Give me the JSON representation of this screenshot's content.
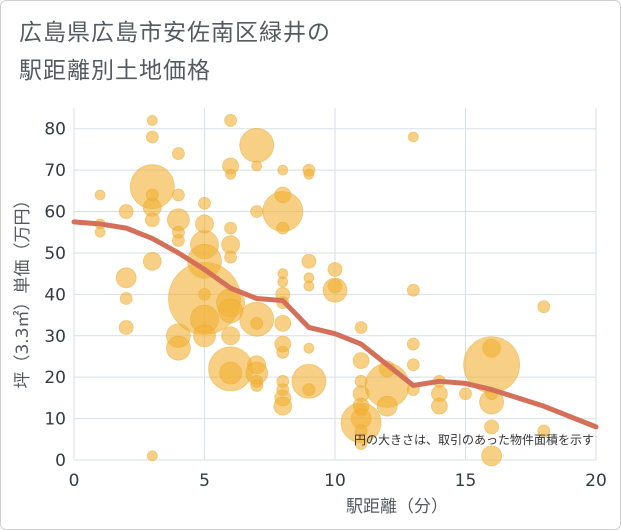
{
  "title_line1": "広島県広島市安佐南区緑井の",
  "title_line2": "駅距離別土地価格",
  "chart_data": {
    "type": "scatter",
    "title": "広島県広島市安佐南区緑井の 駅距離別土地価格",
    "xlabel": "駅距離（分）",
    "ylabel": "坪（3.3㎡）単価（万円）",
    "xlim": [
      0,
      20
    ],
    "ylim": [
      0,
      85
    ],
    "xticks": [
      0,
      5,
      10,
      15,
      20
    ],
    "yticks": [
      0,
      10,
      20,
      30,
      40,
      50,
      60,
      70,
      80
    ],
    "grid": true,
    "note": "円の大きさは、取引のあった物件面積を示す",
    "colors": {
      "bubble": "#f2b134",
      "trend": "#d4705a",
      "grid": "#d7dfe8"
    },
    "points": [
      {
        "x": 1,
        "y": 64,
        "s": 5
      },
      {
        "x": 1,
        "y": 57,
        "s": 5
      },
      {
        "x": 1,
        "y": 55,
        "s": 5
      },
      {
        "x": 2,
        "y": 60,
        "s": 7
      },
      {
        "x": 2,
        "y": 44,
        "s": 10
      },
      {
        "x": 2,
        "y": 39,
        "s": 6
      },
      {
        "x": 2,
        "y": 32,
        "s": 7
      },
      {
        "x": 3,
        "y": 82,
        "s": 5
      },
      {
        "x": 3,
        "y": 78,
        "s": 6
      },
      {
        "x": 3,
        "y": 66,
        "s": 22
      },
      {
        "x": 3,
        "y": 64,
        "s": 6
      },
      {
        "x": 3,
        "y": 61,
        "s": 9
      },
      {
        "x": 3,
        "y": 58,
        "s": 7
      },
      {
        "x": 3,
        "y": 48,
        "s": 9
      },
      {
        "x": 3,
        "y": 1,
        "s": 5
      },
      {
        "x": 4,
        "y": 74,
        "s": 6
      },
      {
        "x": 4,
        "y": 64,
        "s": 6
      },
      {
        "x": 4,
        "y": 58,
        "s": 11
      },
      {
        "x": 4,
        "y": 55,
        "s": 6
      },
      {
        "x": 4,
        "y": 53,
        "s": 6
      },
      {
        "x": 4,
        "y": 30,
        "s": 12
      },
      {
        "x": 4,
        "y": 27,
        "s": 12
      },
      {
        "x": 5,
        "y": 62,
        "s": 6
      },
      {
        "x": 5,
        "y": 57,
        "s": 9
      },
      {
        "x": 5,
        "y": 52,
        "s": 14
      },
      {
        "x": 5,
        "y": 48,
        "s": 17
      },
      {
        "x": 5,
        "y": 40,
        "s": 6
      },
      {
        "x": 5,
        "y": 39,
        "s": 36
      },
      {
        "x": 5,
        "y": 34,
        "s": 14
      },
      {
        "x": 5,
        "y": 30,
        "s": 11
      },
      {
        "x": 6,
        "y": 82,
        "s": 6
      },
      {
        "x": 6,
        "y": 71,
        "s": 8
      },
      {
        "x": 6,
        "y": 69,
        "s": 5
      },
      {
        "x": 6,
        "y": 56,
        "s": 6
      },
      {
        "x": 6,
        "y": 52,
        "s": 9
      },
      {
        "x": 6,
        "y": 49,
        "s": 6
      },
      {
        "x": 6,
        "y": 38,
        "s": 14
      },
      {
        "x": 6,
        "y": 36,
        "s": 12
      },
      {
        "x": 6,
        "y": 30,
        "s": 9
      },
      {
        "x": 6,
        "y": 22,
        "s": 22
      },
      {
        "x": 6,
        "y": 21,
        "s": 11
      },
      {
        "x": 7,
        "y": 76,
        "s": 17
      },
      {
        "x": 7,
        "y": 71,
        "s": 5
      },
      {
        "x": 7,
        "y": 60,
        "s": 6
      },
      {
        "x": 7,
        "y": 34,
        "s": 17
      },
      {
        "x": 7,
        "y": 33,
        "s": 6
      },
      {
        "x": 7,
        "y": 23,
        "s": 9
      },
      {
        "x": 7,
        "y": 21,
        "s": 11
      },
      {
        "x": 7,
        "y": 19,
        "s": 6
      },
      {
        "x": 7,
        "y": 18,
        "s": 6
      },
      {
        "x": 8,
        "y": 70,
        "s": 5
      },
      {
        "x": 8,
        "y": 64,
        "s": 8
      },
      {
        "x": 8,
        "y": 60,
        "s": 20
      },
      {
        "x": 8,
        "y": 56,
        "s": 6
      },
      {
        "x": 8,
        "y": 45,
        "s": 5
      },
      {
        "x": 8,
        "y": 43,
        "s": 5
      },
      {
        "x": 8,
        "y": 40,
        "s": 7
      },
      {
        "x": 8,
        "y": 38,
        "s": 6
      },
      {
        "x": 8,
        "y": 33,
        "s": 8
      },
      {
        "x": 8,
        "y": 28,
        "s": 8
      },
      {
        "x": 8,
        "y": 26,
        "s": 6
      },
      {
        "x": 8,
        "y": 19,
        "s": 6
      },
      {
        "x": 8,
        "y": 17,
        "s": 6
      },
      {
        "x": 8,
        "y": 15,
        "s": 8
      },
      {
        "x": 8,
        "y": 13,
        "s": 9
      },
      {
        "x": 9,
        "y": 70,
        "s": 6
      },
      {
        "x": 9,
        "y": 69,
        "s": 5
      },
      {
        "x": 9,
        "y": 48,
        "s": 7
      },
      {
        "x": 9,
        "y": 44,
        "s": 5
      },
      {
        "x": 9,
        "y": 42,
        "s": 5
      },
      {
        "x": 9,
        "y": 27,
        "s": 5
      },
      {
        "x": 9,
        "y": 19,
        "s": 17
      },
      {
        "x": 9,
        "y": 17,
        "s": 6
      },
      {
        "x": 10,
        "y": 46,
        "s": 7
      },
      {
        "x": 10,
        "y": 42,
        "s": 7
      },
      {
        "x": 10,
        "y": 41,
        "s": 12
      },
      {
        "x": 11,
        "y": 32,
        "s": 6
      },
      {
        "x": 11,
        "y": 24,
        "s": 8
      },
      {
        "x": 11,
        "y": 19,
        "s": 6
      },
      {
        "x": 11,
        "y": 16,
        "s": 8
      },
      {
        "x": 11,
        "y": 13,
        "s": 8
      },
      {
        "x": 11,
        "y": 12,
        "s": 6
      },
      {
        "x": 11,
        "y": 10,
        "s": 10
      },
      {
        "x": 11,
        "y": 9,
        "s": 20
      },
      {
        "x": 11,
        "y": 7,
        "s": 6
      },
      {
        "x": 11,
        "y": 4,
        "s": 6
      },
      {
        "x": 12,
        "y": 22,
        "s": 8
      },
      {
        "x": 12,
        "y": 18,
        "s": 22
      },
      {
        "x": 12,
        "y": 13,
        "s": 10
      },
      {
        "x": 13,
        "y": 78,
        "s": 5
      },
      {
        "x": 13,
        "y": 41,
        "s": 6
      },
      {
        "x": 13,
        "y": 28,
        "s": 6
      },
      {
        "x": 13,
        "y": 23,
        "s": 6
      },
      {
        "x": 13,
        "y": 17,
        "s": 6
      },
      {
        "x": 14,
        "y": 19,
        "s": 6
      },
      {
        "x": 14,
        "y": 16,
        "s": 8
      },
      {
        "x": 14,
        "y": 13,
        "s": 8
      },
      {
        "x": 15,
        "y": 16,
        "s": 6
      },
      {
        "x": 16,
        "y": 27,
        "s": 9
      },
      {
        "x": 16,
        "y": 23,
        "s": 28
      },
      {
        "x": 16,
        "y": 16,
        "s": 6
      },
      {
        "x": 16,
        "y": 14,
        "s": 12
      },
      {
        "x": 16,
        "y": 8,
        "s": 7
      },
      {
        "x": 16,
        "y": 1,
        "s": 10
      },
      {
        "x": 18,
        "y": 37,
        "s": 6
      },
      {
        "x": 18,
        "y": 7,
        "s": 6
      }
    ],
    "trend": {
      "x": [
        0,
        1,
        2,
        3,
        4,
        5,
        6,
        7,
        8,
        9,
        10,
        11,
        12,
        13,
        14,
        15,
        16,
        17,
        18,
        19,
        20
      ],
      "y": [
        57.5,
        57,
        56,
        53.5,
        50,
        46,
        41.5,
        39,
        38.5,
        32,
        30.5,
        28,
        23,
        18,
        19,
        18.5,
        17,
        15,
        13,
        10.5,
        8
      ]
    }
  }
}
